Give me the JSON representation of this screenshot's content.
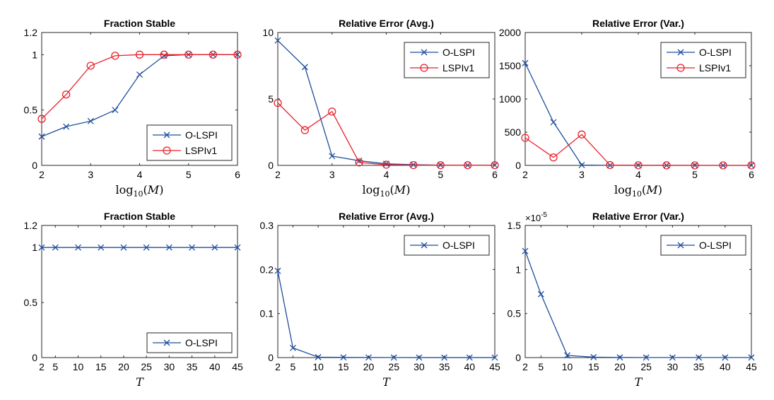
{
  "chart_data": [
    {
      "type": "line",
      "title": "Fraction Stable",
      "xlabel": "log10(M)",
      "xlim": [
        2,
        6
      ],
      "ylim": [
        0,
        1.2
      ],
      "xticks": [
        2,
        3,
        4,
        5,
        6
      ],
      "xtick_labels": [
        "2",
        "3",
        "4",
        "5",
        "6"
      ],
      "yticks": [
        0,
        0.5,
        1,
        1.2
      ],
      "ytick_labels": [
        "0",
        "0.5",
        "1",
        "1.2"
      ],
      "legend": "bottom-right",
      "grid": false,
      "x": [
        2,
        2.5,
        3,
        3.5,
        4,
        4.5,
        5,
        5.5,
        6
      ],
      "series": [
        {
          "name": "O-LSPI",
          "color": "#1f4e9c",
          "marker": "x",
          "values": [
            0.26,
            0.35,
            0.4,
            0.5,
            0.82,
            0.99,
            1.0,
            1.0,
            1.0
          ]
        },
        {
          "name": "LSPIv1",
          "color": "#e8222c",
          "marker": "o",
          "values": [
            0.42,
            0.64,
            0.9,
            0.99,
            1.0,
            1.0,
            1.0,
            1.0,
            1.0
          ]
        }
      ]
    },
    {
      "type": "line",
      "title": "Relative Error (Avg.)",
      "xlabel": "log10(M)",
      "xlim": [
        2,
        6
      ],
      "ylim": [
        0,
        10
      ],
      "xticks": [
        2,
        3,
        4,
        5,
        6
      ],
      "xtick_labels": [
        "2",
        "3",
        "4",
        "5",
        "6"
      ],
      "yticks": [
        0,
        5,
        10
      ],
      "ytick_labels": [
        "0",
        "5",
        "10"
      ],
      "legend": "top-right",
      "grid": false,
      "x": [
        2,
        2.5,
        3,
        3.5,
        4,
        4.5,
        5,
        5.5,
        6
      ],
      "series": [
        {
          "name": "O-LSPI",
          "color": "#1f4e9c",
          "marker": "x",
          "values": [
            9.4,
            7.4,
            0.7,
            0.35,
            0.12,
            0.05,
            0.02,
            0.01,
            0.01
          ]
        },
        {
          "name": "LSPIv1",
          "color": "#e8222c",
          "marker": "o",
          "values": [
            4.7,
            2.65,
            4.05,
            0.22,
            0.05,
            0.02,
            0.01,
            0.01,
            0.01
          ]
        }
      ]
    },
    {
      "type": "line",
      "title": "Relative Error (Var.)",
      "xlabel": "log10(M)",
      "xlim": [
        2,
        6
      ],
      "ylim": [
        0,
        2000
      ],
      "xticks": [
        2,
        3,
        4,
        5,
        6
      ],
      "xtick_labels": [
        "2",
        "3",
        "4",
        "5",
        "6"
      ],
      "yticks": [
        0,
        500,
        1000,
        1500,
        2000
      ],
      "ytick_labels": [
        "0",
        "500",
        "1000",
        "1500",
        "2000"
      ],
      "legend": "top-right",
      "grid": false,
      "x": [
        2,
        2.5,
        3,
        3.5,
        4,
        4.5,
        5,
        5.5,
        6
      ],
      "series": [
        {
          "name": "O-LSPI",
          "color": "#1f4e9c",
          "marker": "x",
          "values": [
            1540,
            650,
            5,
            1,
            0.5,
            0.2,
            0.1,
            0.1,
            0.1
          ]
        },
        {
          "name": "LSPIv1",
          "color": "#e8222c",
          "marker": "o",
          "values": [
            415,
            120,
            465,
            5,
            1,
            0.5,
            0.2,
            0.1,
            0.1
          ]
        }
      ]
    },
    {
      "type": "line",
      "title": "Fraction Stable",
      "xlabel": "T",
      "xlim": [
        2,
        45
      ],
      "ylim": [
        0,
        1.2
      ],
      "xticks": [
        2,
        5,
        10,
        15,
        20,
        25,
        30,
        35,
        40,
        45
      ],
      "xtick_labels": [
        "2",
        "5",
        "10",
        "15",
        "20",
        "25",
        "30",
        "35",
        "40",
        "45"
      ],
      "yticks": [
        0,
        0.5,
        1,
        1.2
      ],
      "ytick_labels": [
        "0",
        "0.5",
        "1",
        "1.2"
      ],
      "legend": "bottom-right",
      "grid": false,
      "x": [
        2,
        5,
        10,
        15,
        20,
        25,
        30,
        35,
        40,
        45
      ],
      "series": [
        {
          "name": "O-LSPI",
          "color": "#1f4e9c",
          "marker": "x",
          "values": [
            1,
            1,
            1,
            1,
            1,
            1,
            1,
            1,
            1,
            1
          ]
        }
      ]
    },
    {
      "type": "line",
      "title": "Relative Error (Avg.)",
      "xlabel": "T",
      "xlim": [
        2,
        45
      ],
      "ylim": [
        0,
        0.3
      ],
      "xticks": [
        2,
        5,
        10,
        15,
        20,
        25,
        30,
        35,
        40,
        45
      ],
      "xtick_labels": [
        "2",
        "5",
        "10",
        "15",
        "20",
        "25",
        "30",
        "35",
        "40",
        "45"
      ],
      "yticks": [
        0,
        0.1,
        0.2,
        0.3
      ],
      "ytick_labels": [
        "0",
        "0.1",
        "0.2",
        "0.3"
      ],
      "legend": "top-right",
      "grid": false,
      "x": [
        2,
        5,
        10,
        15,
        20,
        25,
        30,
        35,
        40,
        45
      ],
      "series": [
        {
          "name": "O-LSPI",
          "color": "#1f4e9c",
          "marker": "x",
          "values": [
            0.197,
            0.022,
            0.001,
            0.0005,
            0.0003,
            0.0002,
            0.0001,
            0.0001,
            0.0001,
            0.0001
          ]
        }
      ]
    },
    {
      "type": "line",
      "title": "Relative Error (Var.)",
      "xlabel": "T",
      "xlim": [
        2,
        45
      ],
      "ylim": [
        0,
        1.5
      ],
      "xticks": [
        2,
        5,
        10,
        15,
        20,
        25,
        30,
        35,
        40,
        45
      ],
      "xtick_labels": [
        "2",
        "5",
        "10",
        "15",
        "20",
        "25",
        "30",
        "35",
        "40",
        "45"
      ],
      "yticks": [
        0,
        0.5,
        1,
        1.5
      ],
      "ytick_labels": [
        "0",
        "0.5",
        "1",
        "1.5"
      ],
      "y_exponent_base": "×10",
      "y_exponent": "-5",
      "legend": "top-right",
      "grid": false,
      "x": [
        2,
        5,
        10,
        15,
        20,
        25,
        30,
        35,
        40,
        45
      ],
      "series": [
        {
          "name": "O-LSPI",
          "color": "#1f4e9c",
          "marker": "x",
          "values": [
            1.21,
            0.72,
            0.025,
            0.005,
            0.002,
            0.001,
            0.001,
            0.001,
            0.001,
            0.001
          ]
        }
      ]
    }
  ]
}
